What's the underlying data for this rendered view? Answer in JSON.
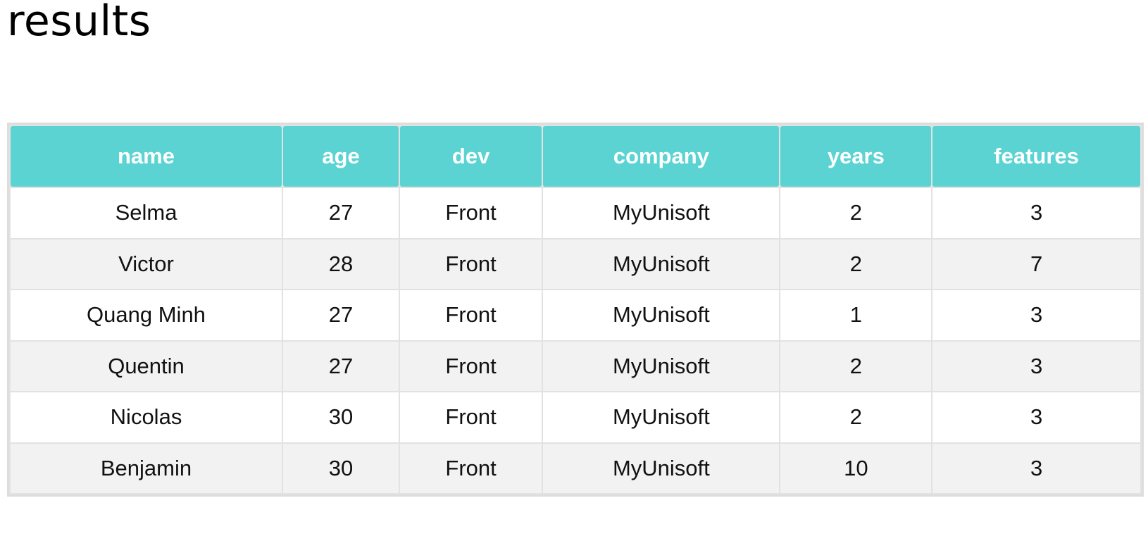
{
  "page": {
    "title": "results"
  },
  "table": {
    "columns": [
      "name",
      "age",
      "dev",
      "company",
      "years",
      "features"
    ],
    "rows": [
      [
        "Selma",
        "27",
        "Front",
        "MyUnisoft",
        "2",
        "3"
      ],
      [
        "Victor",
        "28",
        "Front",
        "MyUnisoft",
        "2",
        "7"
      ],
      [
        "Quang Minh",
        "27",
        "Front",
        "MyUnisoft",
        "1",
        "3"
      ],
      [
        "Quentin",
        "27",
        "Front",
        "MyUnisoft",
        "2",
        "3"
      ],
      [
        "Nicolas",
        "30",
        "Front",
        "MyUnisoft",
        "2",
        "3"
      ],
      [
        "Benjamin",
        "30",
        "Front",
        "MyUnisoft",
        "10",
        "3"
      ]
    ]
  },
  "colors": {
    "header_background": "#5cd3d3",
    "header_text": "#ffffff",
    "row_odd": "#ffffff",
    "row_even": "#f2f2f2",
    "frame": "#dddddd"
  }
}
